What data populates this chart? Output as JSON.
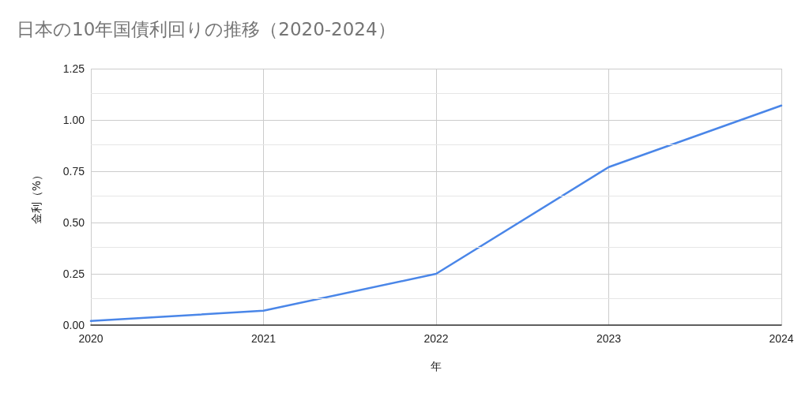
{
  "chart_data": {
    "type": "line",
    "title": "日本の10年国債利回りの推移（2020-2024）",
    "xlabel": "年",
    "ylabel": "金利（%）",
    "x": [
      2020,
      2021,
      2022,
      2023,
      2024
    ],
    "series": [
      {
        "color": "#4a86e8",
        "values": [
          0.02,
          0.07,
          0.25,
          0.77,
          1.07
        ]
      }
    ],
    "xlim": [
      2020,
      2024
    ],
    "xticks": [
      2020,
      2021,
      2022,
      2023,
      2024
    ],
    "ylim": [
      0,
      1.25
    ],
    "yticks": [
      {
        "value": 0,
        "label": "0.00"
      },
      {
        "value": 0.25,
        "label": "0.25"
      },
      {
        "value": 0.5,
        "label": "0.50"
      },
      {
        "value": 0.75,
        "label": "0.75"
      },
      {
        "value": 1,
        "label": "1.00"
      },
      {
        "value": 1.25,
        "label": "1.25"
      }
    ],
    "grid": true,
    "marker": "none",
    "line_style": "solid"
  }
}
